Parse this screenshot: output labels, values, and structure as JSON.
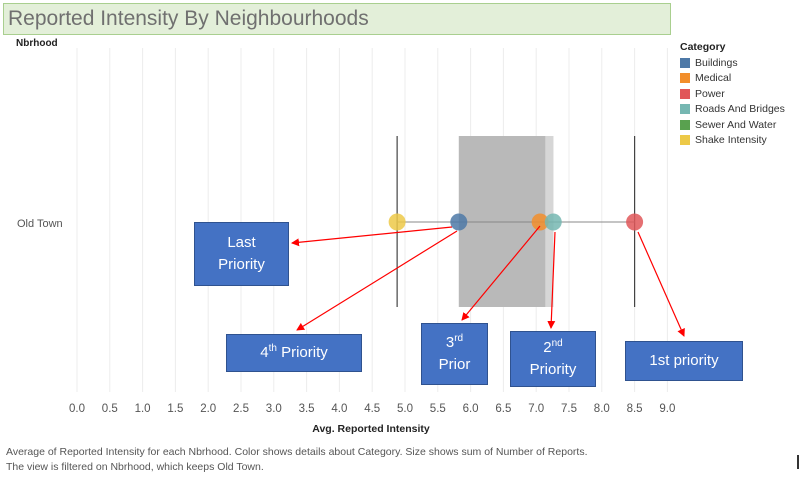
{
  "title": "Reported Intensity By Neighbourhoods",
  "row_header": "Nbrhood",
  "legend": {
    "title": "Category",
    "items": [
      {
        "label": "Buildings",
        "color": "#4e79a7"
      },
      {
        "label": "Medical",
        "color": "#f28e2b"
      },
      {
        "label": "Power",
        "color": "#e15759"
      },
      {
        "label": "Roads And Bridges",
        "color": "#76b7b2"
      },
      {
        "label": "Sewer And Water",
        "color": "#59a14f"
      },
      {
        "label": "Shake Intensity",
        "color": "#edc948"
      }
    ]
  },
  "annotations": {
    "last": {
      "line1": "Last",
      "line2": "Priority"
    },
    "fourth": {
      "sup": "th",
      "text": " Priority",
      "num": "4"
    },
    "third": {
      "line1": "3",
      "sup": "rd",
      "line2": "Prior"
    },
    "second": {
      "line1": "2",
      "sup": "nd",
      "line2": "Priority"
    },
    "first": {
      "text": "1st priority"
    }
  },
  "caption": {
    "line1": "Average of Reported Intensity  for each Nbrhood.  Color shows details about Category.  Size shows sum of Number of Reports.",
    "line2": "The view is filtered on Nbrhood, which keeps Old Town."
  },
  "chart_data": {
    "type": "scatter",
    "title": "Reported Intensity By Neighbourhoods",
    "xlabel": "Avg. Reported Intensity",
    "ylabel": "Nbrhood",
    "categories": [
      "Old Town"
    ],
    "xlim": [
      0,
      9
    ],
    "xticks": [
      "0.0",
      "0.5",
      "1.0",
      "1.5",
      "2.0",
      "2.5",
      "3.0",
      "3.5",
      "4.0",
      "4.5",
      "5.0",
      "5.5",
      "6.0",
      "6.5",
      "7.0",
      "7.5",
      "8.0",
      "8.5",
      "9.0"
    ],
    "series": [
      {
        "name": "Shake Intensity",
        "category": "Old Town",
        "x": 4.88,
        "color": "#edc948"
      },
      {
        "name": "Buildings",
        "category": "Old Town",
        "x": 5.82,
        "color": "#4e79a7"
      },
      {
        "name": "Medical",
        "category": "Old Town",
        "x": 7.06,
        "color": "#f28e2b"
      },
      {
        "name": "Roads And Bridges",
        "category": "Old Town",
        "x": 7.26,
        "color": "#76b7b2"
      },
      {
        "name": "Power",
        "category": "Old Town",
        "x": 8.5,
        "color": "#e15759"
      }
    ],
    "reference_lines": [
      4.88,
      8.5
    ],
    "reference_band": [
      5.82,
      7.26
    ],
    "grid": true
  }
}
